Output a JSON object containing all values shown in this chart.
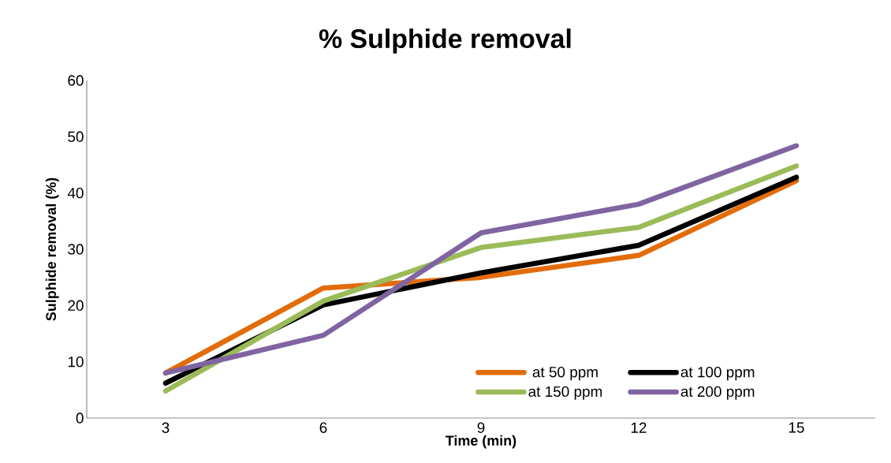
{
  "chart_data": {
    "type": "line",
    "title": "% Sulphide removal",
    "xlabel": "Time (min)",
    "ylabel": "Sulphide removal (%)",
    "categories": [
      "3",
      "6",
      "9",
      "12",
      "15"
    ],
    "series": [
      {
        "name": "at 50 ppm",
        "color": "#e36c0a",
        "values": [
          8.0,
          23.1,
          25.0,
          28.9,
          42.2
        ]
      },
      {
        "name": "at 100 ppm",
        "color": "#000000",
        "values": [
          6.2,
          20.1,
          25.8,
          30.7,
          42.8
        ]
      },
      {
        "name": "at 150 ppm",
        "color": "#9bbb59",
        "values": [
          4.8,
          20.8,
          30.3,
          33.9,
          44.8
        ]
      },
      {
        "name": "at 200 ppm",
        "color": "#8064a2",
        "values": [
          8.0,
          14.7,
          32.9,
          38.0,
          48.4
        ]
      }
    ],
    "ylim": [
      0,
      60
    ],
    "yticks": [
      0,
      10,
      20,
      30,
      40,
      50,
      60
    ],
    "grid": false,
    "legend": "bottom right",
    "marker": "none",
    "line_style": "solid"
  }
}
